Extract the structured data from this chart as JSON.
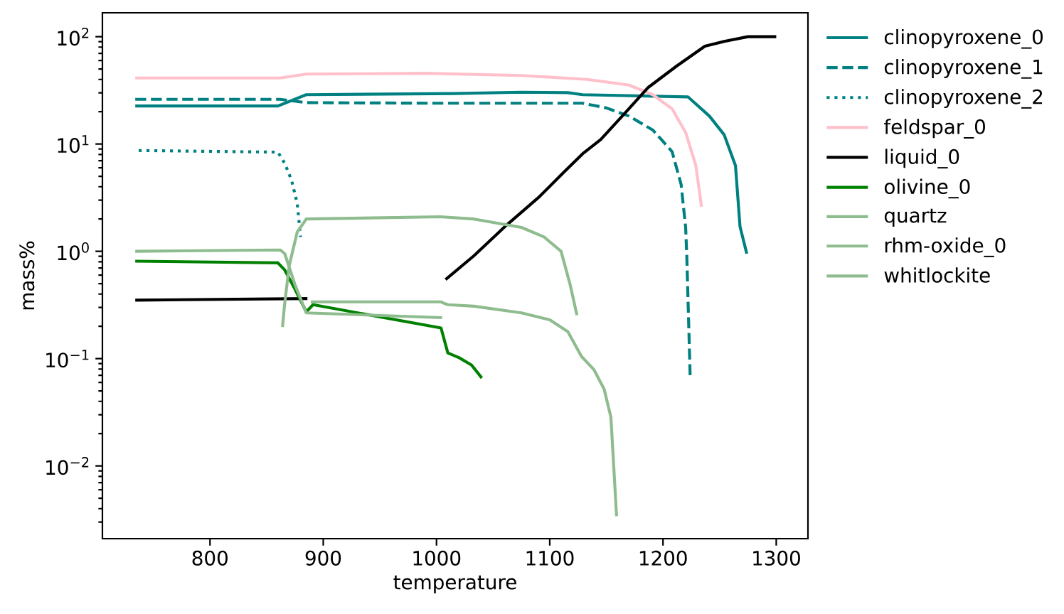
{
  "chart_data": {
    "type": "line",
    "xlabel": "temperature",
    "ylabel": "mass%",
    "log": "y",
    "legend": "right",
    "xlim": [
      705,
      1328
    ],
    "xticks": [
      800,
      900,
      1000,
      1100,
      1200,
      1300
    ],
    "ylim": [
      0.0021,
      167
    ],
    "yticks": [
      {
        "value": 0.01,
        "label": "10$^{−2}$"
      },
      {
        "value": 0.1,
        "label": "10$^{−1}$"
      },
      {
        "value": 1,
        "label": "10$^{0}$"
      },
      {
        "value": 10,
        "label": "10$^{1}$"
      },
      {
        "value": 100,
        "label": "10$^{2}$"
      }
    ],
    "series": [
      {
        "name": "clinopyroxene_0",
        "color": "#008080",
        "line_style": "solid",
        "x": [
          734,
          860,
          885,
          1016,
          1075,
          1116,
          1129,
          1222,
          1241,
          1254,
          1264,
          1268,
          1274
        ],
        "values": [
          22.6,
          22.6,
          28.8,
          29.5,
          30.4,
          30.1,
          28.8,
          27.5,
          18.2,
          12.2,
          6.3,
          1.7,
          0.95
        ]
      },
      {
        "name": "clinopyroxene_1",
        "color": "#008080",
        "line_style": "dashed",
        "x": [
          734,
          862,
          885,
          991,
          1129,
          1150,
          1170,
          1191,
          1208,
          1216,
          1220,
          1221,
          1224
        ],
        "values": [
          26.1,
          26.1,
          24.3,
          24.0,
          24.0,
          21.7,
          18.2,
          13.5,
          8.5,
          4.2,
          1.67,
          0.91,
          0.068
        ]
      },
      {
        "name": "clinopyroxene_2",
        "color": "#008080",
        "line_style": "dotted",
        "x": [
          737,
          860,
          866,
          872,
          877,
          880
        ],
        "values": [
          8.7,
          8.4,
          6.6,
          4.6,
          2.8,
          1.36
        ]
      },
      {
        "name": "feldspar_0",
        "color": "#ffc0cb",
        "line_style": "solid",
        "x": [
          734,
          862,
          885,
          991,
          1075,
          1133,
          1170,
          1191,
          1208,
          1220,
          1229,
          1234
        ],
        "values": [
          41.2,
          41.2,
          44.8,
          45.6,
          43.5,
          40,
          35.4,
          28.8,
          21.3,
          12.8,
          6.3,
          2.6
        ]
      },
      {
        "name": "liquid_0",
        "color": "#000000",
        "line_style": "solid",
        "x": [
          734,
          886,
          947,
          1008,
          1033,
          1062,
          1091,
          1112,
          1129,
          1145,
          1166,
          1187,
          1212,
          1237,
          1254,
          1275,
          1300
        ],
        "values": [
          0.351,
          0.363,
          null,
          0.545,
          0.908,
          1.76,
          3.24,
          5.4,
          8.1,
          11.0,
          19.2,
          33.7,
          53.2,
          81.5,
          90.4,
          100,
          100
        ]
      },
      {
        "name": "olivine_0",
        "color": "#008000",
        "line_style": "solid",
        "x": [
          734,
          860,
          866,
          875,
          885,
          891,
          1004,
          1010,
          1020,
          1031,
          1040
        ],
        "values": [
          0.81,
          0.78,
          0.67,
          0.445,
          0.273,
          0.318,
          0.193,
          0.113,
          0.102,
          0.087,
          0.066
        ]
      },
      {
        "name": "quartz",
        "color": "#8fbc8f",
        "line_style": "solid",
        "x": [
          734,
          862,
          866,
          875,
          885,
          1005
        ],
        "values": [
          1.0,
          1.03,
          0.95,
          0.49,
          0.267,
          0.241
        ]
      },
      {
        "name": "rhm-oxide_0",
        "color": "#8fbc8f",
        "line_style": "solid",
        "x": [
          864,
          866,
          870,
          877,
          885,
          1003,
          1033,
          1075,
          1095,
          1110,
          1118,
          1124
        ],
        "values": [
          0.197,
          0.33,
          0.74,
          1.51,
          2.0,
          2.1,
          2.0,
          1.67,
          1.36,
          1.0,
          0.49,
          0.254
        ]
      },
      {
        "name": "whitlockite",
        "color": "#8fbc8f",
        "line_style": "solid",
        "x": [
          889,
          1004,
          1006,
          1010,
          1033,
          1075,
          1100,
          1116,
          1128,
          1139,
          1148,
          1154,
          1159
        ],
        "values": [
          0.338,
          0.338,
          0.33,
          0.318,
          0.308,
          0.267,
          0.23,
          0.178,
          0.105,
          0.079,
          0.052,
          0.0285,
          0.0034
        ]
      }
    ]
  }
}
